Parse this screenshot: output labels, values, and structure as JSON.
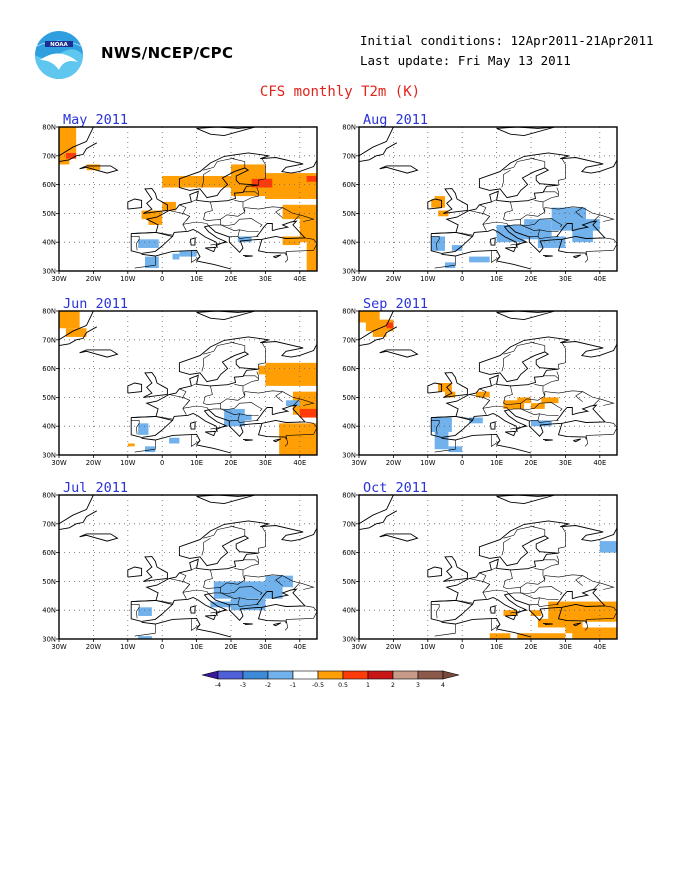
{
  "header": {
    "agency": "NWS/NCEP/CPC",
    "initial_conditions": "Initial conditions: 12Apr2011-21Apr2011",
    "last_update": "Last update: Fri May 13 2011",
    "title": "CFS monthly T2m (K)",
    "logo_icon": "noaa-logo"
  },
  "map": {
    "lon_labels": [
      "30W",
      "20W",
      "10W",
      "0",
      "10E",
      "20E",
      "30E",
      "40E"
    ],
    "lat_labels": [
      "30N",
      "40N",
      "50N",
      "60N",
      "70N",
      "80N"
    ],
    "lon_range": [
      -30,
      45
    ],
    "lat_range": [
      30,
      80
    ]
  },
  "panels": [
    {
      "title": "May 2011"
    },
    {
      "title": "Aug 2011"
    },
    {
      "title": "Jun 2011"
    },
    {
      "title": "Sep 2011"
    },
    {
      "title": "Jul 2011"
    },
    {
      "title": "Oct 2011"
    }
  ],
  "colorbar": {
    "labels": [
      "-4",
      "-3",
      "-2",
      "-1",
      "-0.5",
      "0.5",
      "1",
      "2",
      "3",
      "4"
    ],
    "colors": [
      "#3d2ba6",
      "#5060d8",
      "#3f8ad8",
      "#72b2ec",
      "#ffffff",
      "#ff9e05",
      "#ff3b0a",
      "#c81616",
      "#c89a88",
      "#8c5a4a"
    ]
  }
}
